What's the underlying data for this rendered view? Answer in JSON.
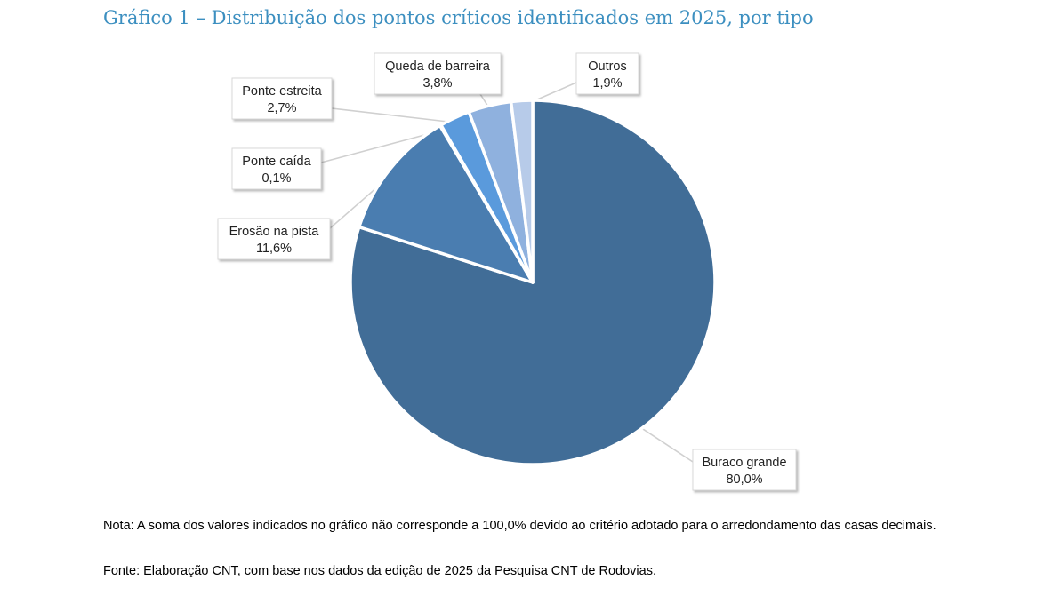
{
  "chart_data": {
    "type": "pie",
    "title": "Gráfico 1 – Distribuição dos pontos críticos identificados em 2025, por tipo",
    "slices": [
      {
        "label": "Buraco grande",
        "value": 80.0,
        "display": "80,0%",
        "color": "#416d97"
      },
      {
        "label": "Erosão na pista",
        "value": 11.6,
        "display": "11,6%",
        "color": "#4a7db0"
      },
      {
        "label": "Ponte caída",
        "value": 0.1,
        "display": "0,1%",
        "color": "#5689c2"
      },
      {
        "label": "Ponte estreita",
        "value": 2.7,
        "display": "2,7%",
        "color": "#5a9adc"
      },
      {
        "label": "Queda de barreira",
        "value": 3.8,
        "display": "3,8%",
        "color": "#8fb1de"
      },
      {
        "label": "Outros",
        "value": 1.9,
        "display": "1,9%",
        "color": "#b7cbe9"
      }
    ],
    "legend": "none",
    "label_style": "callout boxes with leader lines"
  },
  "footnotes": {
    "note": "Nota: A soma dos valores indicados no gráfico não corresponde a 100,0% devido ao critério adotado para o arredondamento das casas decimais.",
    "source": "Fonte: Elaboração CNT, com base nos dados da edição de 2025 da Pesquisa CNT de Rodovias."
  }
}
